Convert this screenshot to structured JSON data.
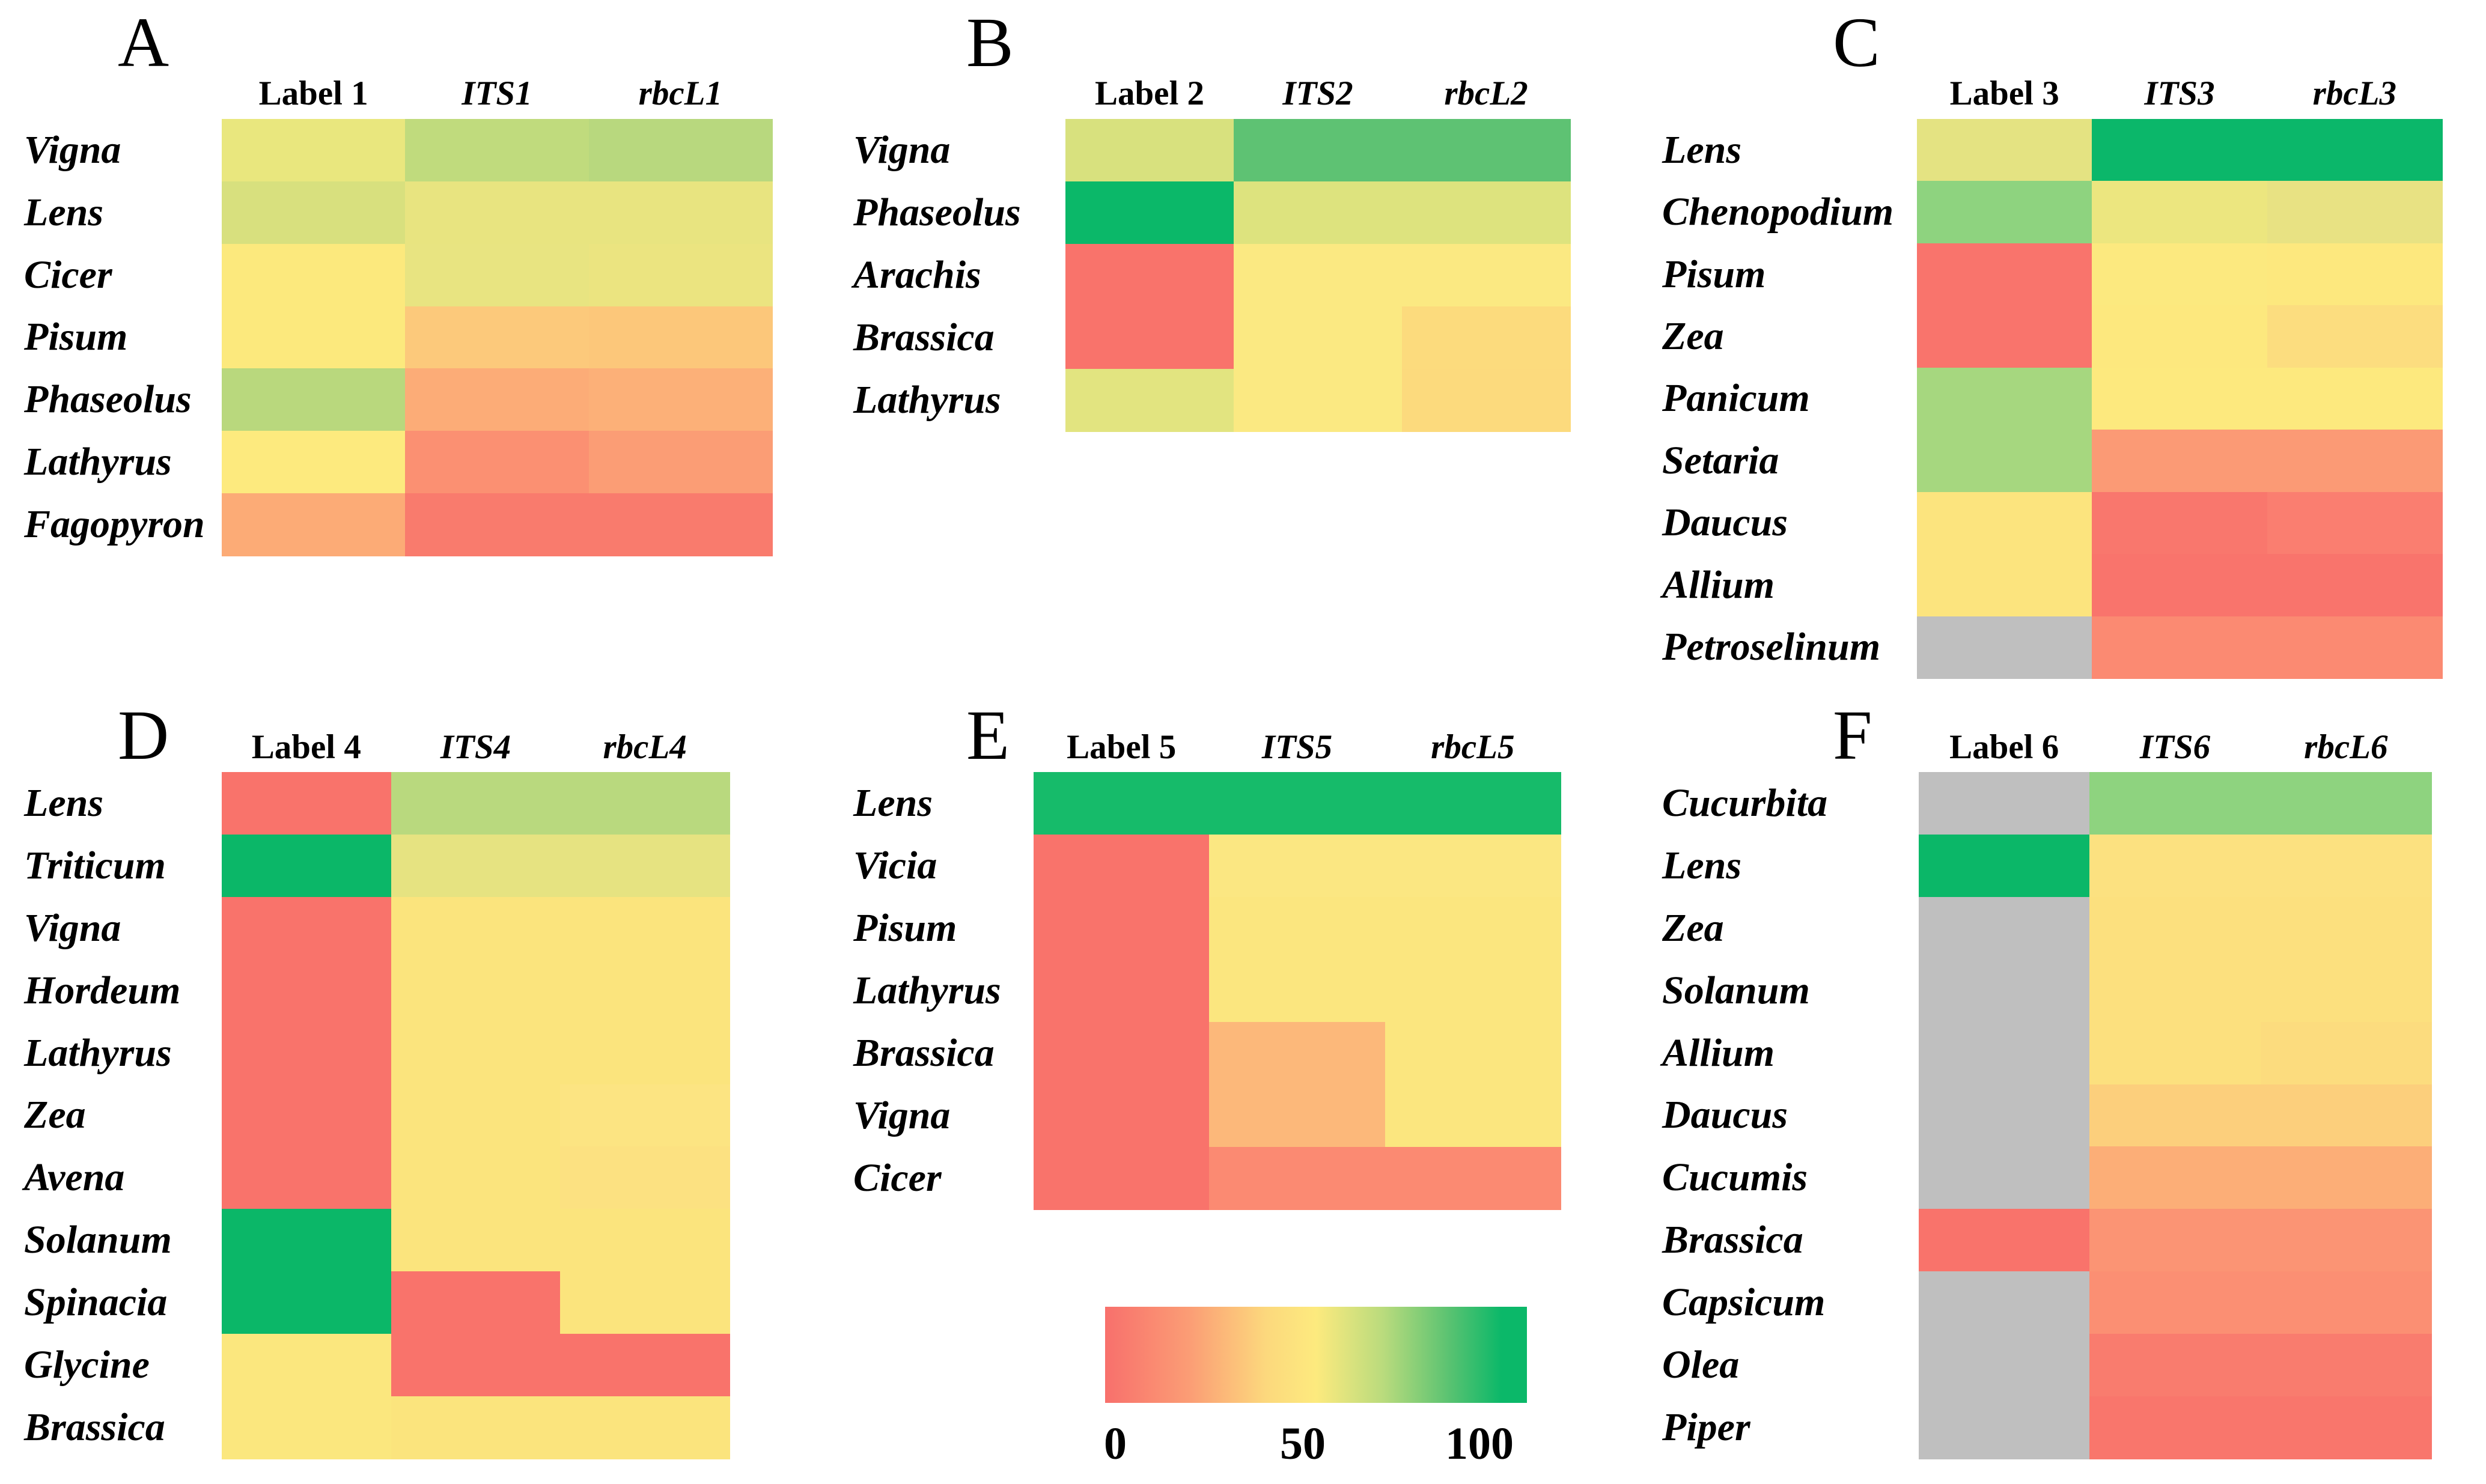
{
  "chart_data": {
    "type": "heatmap",
    "value_scale": {
      "min": 0,
      "mid": 50,
      "max": 100,
      "na_color": "#bfbfbf"
    },
    "panels": [
      {
        "id": "A",
        "columns": [
          "Label 1",
          "ITS1",
          "rbcL1"
        ],
        "rows": [
          {
            "name": "Vigna",
            "values": [
              60,
              70,
              70
            ],
            "colors": [
              "#e9e77e",
              "#c0db7d",
              "#b8d87e"
            ]
          },
          {
            "name": "Lens",
            "values": [
              62,
              58,
              58
            ],
            "colors": [
              "#d8e07e",
              "#e8e480",
              "#e8e480"
            ]
          },
          {
            "name": "Cicer",
            "values": [
              52,
              58,
              57
            ],
            "colors": [
              "#fce97d",
              "#e8e481",
              "#ebe480"
            ]
          },
          {
            "name": "Pisum",
            "values": [
              52,
              35,
              35
            ],
            "colors": [
              "#fce97d",
              "#fcc97b",
              "#fcc77a"
            ]
          },
          {
            "name": "Phaseolus",
            "values": [
              70,
              25,
              26
            ],
            "colors": [
              "#b9d87d",
              "#fcac77",
              "#fcb078"
            ]
          },
          {
            "name": "Lathyrus",
            "values": [
              52,
              16,
              20
            ],
            "colors": [
              "#fdea7e",
              "#fb9072",
              "#fb9d75"
            ]
          },
          {
            "name": "Fagopyron",
            "values": [
              25,
              4,
              4
            ],
            "colors": [
              "#fcab76",
              "#f97b6d",
              "#f97b6d"
            ]
          }
        ]
      },
      {
        "id": "B",
        "columns": [
          "Label 2",
          "ITS2",
          "rbcL2"
        ],
        "rows": [
          {
            "name": "Vigna",
            "values": [
              62,
              85,
              85
            ],
            "colors": [
              "#d8e17e",
              "#5ec273",
              "#5ec273"
            ]
          },
          {
            "name": "Phaseolus",
            "values": [
              100,
              62,
              62
            ],
            "colors": [
              "#0bb869",
              "#dde37e",
              "#dde37e"
            ]
          },
          {
            "name": "Arachis",
            "values": [
              0,
              53,
              53
            ],
            "colors": [
              "#f9736b",
              "#fbe982",
              "#fbe982"
            ]
          },
          {
            "name": "Brassica",
            "values": [
              0,
              53,
              44
            ],
            "colors": [
              "#f9736b",
              "#fbe982",
              "#fcdb7d"
            ]
          },
          {
            "name": "Lathyrus",
            "values": [
              60,
              53,
              44
            ],
            "colors": [
              "#e2e480",
              "#fbe982",
              "#fcda7d"
            ]
          }
        ]
      },
      {
        "id": "C",
        "columns": [
          "Label 3",
          "ITS3",
          "rbcL3"
        ],
        "rows": [
          {
            "name": "Lens",
            "values": [
              59,
              100,
              100
            ],
            "colors": [
              "#e4e382",
              "#0bb76a",
              "#0bb76a"
            ]
          },
          {
            "name": "Chenopodium",
            "values": [
              76,
              55,
              57
            ],
            "colors": [
              "#8ed37f",
              "#ece67f",
              "#e8e283"
            ]
          },
          {
            "name": "Pisum",
            "values": [
              0,
              52,
              53
            ],
            "colors": [
              "#f9746c",
              "#fce97f",
              "#fde87e"
            ]
          },
          {
            "name": "Zea",
            "values": [
              0,
              53,
              45
            ],
            "colors": [
              "#f9746c",
              "#fde87e",
              "#fcdd7f"
            ]
          },
          {
            "name": "Panicum",
            "values": [
              73,
              53,
              53
            ],
            "colors": [
              "#a6d77f",
              "#fde97e",
              "#fde97e"
            ]
          },
          {
            "name": "Setaria",
            "values": [
              73,
              18,
              18
            ],
            "colors": [
              "#a6d77f",
              "#fb9a75",
              "#fb9a75"
            ]
          },
          {
            "name": "Daucus",
            "values": [
              50,
              2,
              5
            ],
            "colors": [
              "#fce47e",
              "#f9776d",
              "#fa7e70"
            ]
          },
          {
            "name": "Allium",
            "values": [
              50,
              0,
              0
            ],
            "colors": [
              "#fce47e",
              "#f9746c",
              "#f9746c"
            ]
          },
          {
            "name": "Petroselinum",
            "values": [
              null,
              12,
              12
            ],
            "colors": [
              "#bfbfbf",
              "#fb8a72",
              "#fb8a72"
            ]
          }
        ]
      },
      {
        "id": "D",
        "columns": [
          "Label 4",
          "ITS4",
          "rbcL4"
        ],
        "rows": [
          {
            "name": "Lens",
            "values": [
              0,
              70,
              70
            ],
            "colors": [
              "#f9736b",
              "#b9d97e",
              "#b9d97e"
            ]
          },
          {
            "name": "Triticum",
            "values": [
              100,
              59,
              59
            ],
            "colors": [
              "#0bb768",
              "#e6e381",
              "#e6e381"
            ]
          },
          {
            "name": "Vigna",
            "values": [
              0,
              50,
              50
            ],
            "colors": [
              "#f9736b",
              "#fbe47d",
              "#fbe47d"
            ]
          },
          {
            "name": "Hordeum",
            "values": [
              0,
              50,
              50
            ],
            "colors": [
              "#f9736b",
              "#fbe47d",
              "#fbe47d"
            ]
          },
          {
            "name": "Lathyrus",
            "values": [
              0,
              50,
              50
            ],
            "colors": [
              "#f9736b",
              "#fbe47d",
              "#fbe47d"
            ]
          },
          {
            "name": "Zea",
            "values": [
              0,
              50,
              51
            ],
            "colors": [
              "#f9736b",
              "#fbe47d",
              "#fce482"
            ]
          },
          {
            "name": "Avena",
            "values": [
              0,
              50,
              48
            ],
            "colors": [
              "#f9736b",
              "#fbe47d",
              "#fce181"
            ]
          },
          {
            "name": "Solanum",
            "values": [
              100,
              50,
              50
            ],
            "colors": [
              "#0bb768",
              "#fbe47d",
              "#fbe47d"
            ]
          },
          {
            "name": "Spinacia",
            "values": [
              100,
              0,
              50
            ],
            "colors": [
              "#0bb768",
              "#f9736b",
              "#fbe47d"
            ]
          },
          {
            "name": "Glycine",
            "values": [
              52,
              0,
              0
            ],
            "colors": [
              "#fbe77e",
              "#f9736b",
              "#f9736b"
            ]
          },
          {
            "name": "Brassica",
            "values": [
              52,
              50,
              50
            ],
            "colors": [
              "#fbe77e",
              "#fbe47d",
              "#fbe47d"
            ]
          }
        ]
      },
      {
        "id": "E",
        "columns": [
          "Label 5",
          "ITS5",
          "rbcL5"
        ],
        "rows": [
          {
            "name": "Lens",
            "values": [
              97,
              97,
              97
            ],
            "colors": [
              "#16bb6a",
              "#16bb6a",
              "#16bb6a"
            ]
          },
          {
            "name": "Vicia",
            "values": [
              0,
              52,
              52
            ],
            "colors": [
              "#f9736b",
              "#fbe782",
              "#fbe782"
            ]
          },
          {
            "name": "Pisum",
            "values": [
              0,
              52,
              52
            ],
            "colors": [
              "#f9736b",
              "#fbe67f",
              "#fbe67f"
            ]
          },
          {
            "name": "Lathyrus",
            "values": [
              0,
              52,
              52
            ],
            "colors": [
              "#f9736b",
              "#fbe67f",
              "#fbe67f"
            ]
          },
          {
            "name": "Brassica",
            "values": [
              0,
              30,
              52
            ],
            "colors": [
              "#f9736b",
              "#fcb87a",
              "#fbe67f"
            ]
          },
          {
            "name": "Vigna",
            "values": [
              0,
              30,
              52
            ],
            "colors": [
              "#f9736b",
              "#fcb87a",
              "#fbe67f"
            ]
          },
          {
            "name": "Cicer",
            "values": [
              0,
              12,
              12
            ],
            "colors": [
              "#f9736b",
              "#fb8a72",
              "#fb8a72"
            ]
          }
        ]
      },
      {
        "id": "F",
        "columns": [
          "Label 6",
          "ITS6",
          "rbcL6"
        ],
        "rows": [
          {
            "name": "Cucurbita",
            "values": [
              null,
              76,
              76
            ],
            "colors": [
              "#bfbfbf",
              "#8ed37f",
              "#8ed37f"
            ]
          },
          {
            "name": "Lens",
            "values": [
              100,
              47,
              47
            ],
            "colors": [
              "#0bb768",
              "#fce180",
              "#fce180"
            ]
          },
          {
            "name": "Zea",
            "values": [
              null,
              47,
              47
            ],
            "colors": [
              "#bfbfbf",
              "#fce07e",
              "#fce07e"
            ]
          },
          {
            "name": "Solanum",
            "values": [
              null,
              47,
              47
            ],
            "colors": [
              "#bfbfbf",
              "#fce07e",
              "#fce07e"
            ]
          },
          {
            "name": "Allium",
            "values": [
              null,
              47,
              45
            ],
            "colors": [
              "#bfbfbf",
              "#fce07e",
              "#fcdc7e"
            ]
          },
          {
            "name": "Daucus",
            "values": [
              null,
              38,
              38
            ],
            "colors": [
              "#bfbfbf",
              "#fccf7c",
              "#fccf7c"
            ]
          },
          {
            "name": "Cucumis",
            "values": [
              null,
              25,
              25
            ],
            "colors": [
              "#bfbfbf",
              "#fcae77",
              "#fcae77"
            ]
          },
          {
            "name": "Brassica",
            "values": [
              0,
              15,
              15
            ],
            "colors": [
              "#f9736b",
              "#fb9474",
              "#fb9474"
            ]
          },
          {
            "name": "Capsicum",
            "values": [
              null,
              14,
              14
            ],
            "colors": [
              "#bfbfbf",
              "#fb8f73",
              "#fb8f73"
            ]
          },
          {
            "name": "Olea",
            "values": [
              null,
              4,
              4
            ],
            "colors": [
              "#bfbfbf",
              "#f97c6e",
              "#f97c6e"
            ]
          },
          {
            "name": "Piper",
            "values": [
              null,
              2,
              2
            ],
            "colors": [
              "#bfbfbf",
              "#f9766c",
              "#f9766c"
            ]
          }
        ]
      }
    ],
    "legend": {
      "ticks": [
        "0",
        "50",
        "100"
      ],
      "gradient": [
        "#f8706c",
        "#fdea7e",
        "#0bb869"
      ],
      "na_color": "#bfbfbf",
      "position": "bottom-center"
    }
  }
}
